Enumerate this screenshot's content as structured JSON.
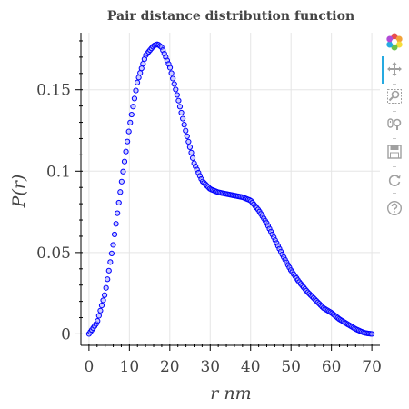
{
  "toolbar": {
    "tools": [
      {
        "name": "bokeh-logo",
        "icon": "bokeh-logo-icon"
      },
      {
        "name": "pan",
        "icon": "pan-icon",
        "active": true
      },
      {
        "name": "box-zoom",
        "icon": "box-zoom-icon"
      },
      {
        "name": "wheel-zoom",
        "icon": "wheel-zoom-icon"
      },
      {
        "name": "save",
        "icon": "save-icon"
      },
      {
        "name": "reset",
        "icon": "reset-icon"
      },
      {
        "name": "help",
        "icon": "help-icon"
      }
    ],
    "active_color": "#26aae1",
    "icon_color": "#a0a0a0"
  },
  "chart_data": {
    "type": "scatter",
    "title": "Pair distance distribution function",
    "xlabel": "r nm",
    "ylabel": "P(r)",
    "xlim": [
      -2,
      72
    ],
    "ylim": [
      -0.007,
      0.185
    ],
    "x_ticks": [
      0,
      10,
      20,
      30,
      40,
      50,
      60,
      70
    ],
    "x_tick_labels": [
      "0",
      "10",
      "20",
      "30",
      "40",
      "50",
      "60",
      "70"
    ],
    "y_ticks": [
      0,
      0.05,
      0.1,
      0.15
    ],
    "y_tick_labels": [
      "0",
      "0.05",
      "0.1",
      "0.15"
    ],
    "grid": true,
    "marker": "circle",
    "marker_edge_color": "#0000ff",
    "marker_fill_color": "#a6a6ff",
    "series": [
      {
        "x": [
          0,
          2,
          4,
          6,
          8,
          10,
          12,
          14,
          16,
          17,
          18,
          20,
          22,
          24,
          26,
          28,
          30,
          32,
          34,
          36,
          38,
          40,
          42,
          44,
          46,
          48,
          50,
          52,
          54,
          56,
          58,
          60,
          62,
          64,
          66,
          68,
          69,
          70
        ],
        "y": [
          0,
          0.007,
          0.025,
          0.055,
          0.092,
          0.127,
          0.155,
          0.171,
          0.177,
          0.178,
          0.176,
          0.164,
          0.145,
          0.124,
          0.105,
          0.094,
          0.089,
          0.087,
          0.086,
          0.085,
          0.084,
          0.082,
          0.076,
          0.068,
          0.058,
          0.048,
          0.039,
          0.032,
          0.026,
          0.021,
          0.016,
          0.013,
          0.009,
          0.006,
          0.003,
          0.0008,
          0.0003,
          0
        ]
      }
    ]
  }
}
